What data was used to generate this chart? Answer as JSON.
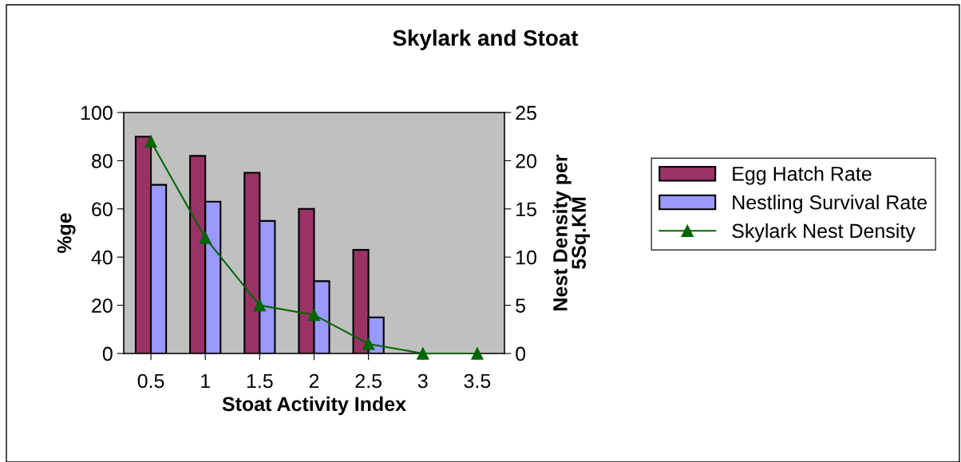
{
  "chart_data": {
    "type": "bar",
    "title": "Skylark and Stoat",
    "xlabel": "Stoat Activity Index",
    "ylabel": "%ge",
    "y2label": "Nest Density per\n5Sq.KM",
    "categories": [
      "0.5",
      "1",
      "1.5",
      "2",
      "2.5",
      "3",
      "3.5"
    ],
    "series": [
      {
        "name": "Egg Hatch Rate",
        "color": "#993366",
        "values": [
          90,
          82,
          75,
          60,
          43,
          null,
          null
        ]
      },
      {
        "name": "Nestling Survival Rate",
        "color": "#9999ff",
        "values": [
          70,
          63,
          55,
          30,
          15,
          null,
          null
        ]
      },
      {
        "name": "Skylark Nest Density",
        "color": "#006600",
        "type": "line",
        "axis": "y2",
        "marker": "triangle",
        "values": [
          22,
          12,
          5,
          4,
          1,
          0,
          0
        ]
      }
    ],
    "ylim": [
      0,
      100
    ],
    "yticks": [
      0,
      20,
      40,
      60,
      80,
      100
    ],
    "y2lim": [
      0,
      25
    ],
    "y2ticks": [
      0,
      5,
      10,
      15,
      20,
      25
    ],
    "grid": false,
    "legend": "right"
  }
}
